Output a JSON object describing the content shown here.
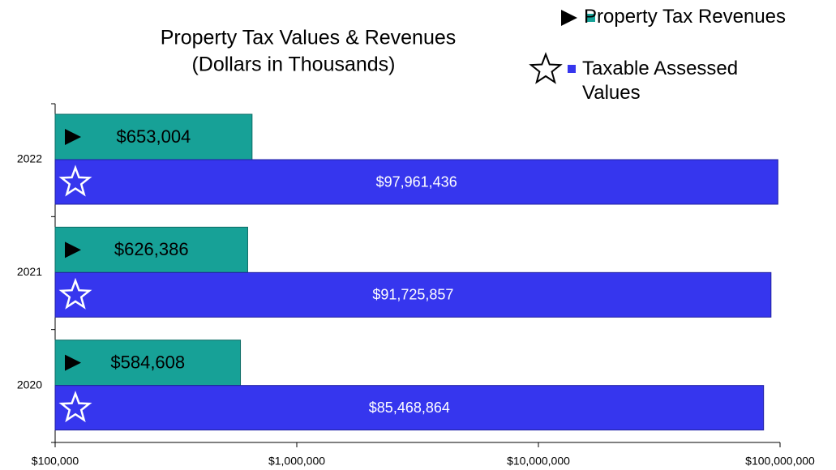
{
  "chart_data": {
    "type": "hbar",
    "title": "Property Tax Values & Revenues",
    "subtitle": "(Dollars in Thousands)",
    "categories": [
      "2022",
      "2021",
      "2020"
    ],
    "series": [
      {
        "name": "Property Tax Revenues",
        "color": "#17a197",
        "values": [
          653004,
          626386,
          584608
        ],
        "value_labels": [
          "$653,004",
          "$626,386",
          "$584,608"
        ]
      },
      {
        "name": "Taxable Assessed Values",
        "color": "#3636ee",
        "values": [
          97961436,
          91725857,
          85468864
        ],
        "value_labels": [
          "$97,961,436",
          "$91,725,857",
          "$85,468,864"
        ]
      }
    ],
    "xlim": [
      100000,
      100000000
    ],
    "xscale": "log",
    "xticks": [
      {
        "value": 100000,
        "label": "$100,000"
      },
      {
        "value": 1000000,
        "label": "$1,000,000"
      },
      {
        "value": 10000000,
        "label": "$10,000,000"
      },
      {
        "value": 100000000,
        "label": "$100,000,000"
      }
    ],
    "legend": "top-right"
  }
}
